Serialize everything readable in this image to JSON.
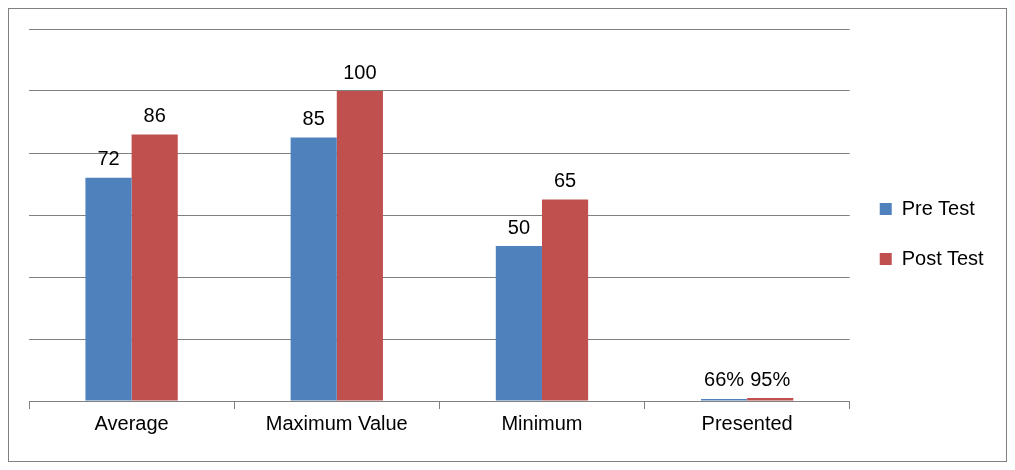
{
  "chart_data": {
    "type": "bar",
    "categories": [
      "Average",
      "Maximum Value",
      "Minimum",
      "Presented"
    ],
    "series": [
      {
        "name": "Pre Test",
        "color": "#4f81bd",
        "values": [
          72,
          85,
          50,
          0.66
        ],
        "value_labels": [
          "72",
          "85",
          "50",
          "66%"
        ]
      },
      {
        "name": "Post Test",
        "color": "#c0504d",
        "values": [
          86,
          100,
          65,
          0.95
        ],
        "value_labels": [
          "86",
          "100",
          "65",
          "95%"
        ]
      }
    ],
    "ylim": [
      0,
      120
    ],
    "yticks": [
      {
        "value": 0,
        "label": null
      },
      {
        "value": 20,
        "label": null
      },
      {
        "value": 40,
        "label": null
      },
      {
        "value": 60,
        "label": null
      },
      {
        "value": 80,
        "label": null
      },
      {
        "value": 100,
        "label": null
      },
      {
        "value": 120,
        "label": null
      }
    ],
    "tick_labels": "x",
    "grid": "y",
    "legend": "right"
  }
}
